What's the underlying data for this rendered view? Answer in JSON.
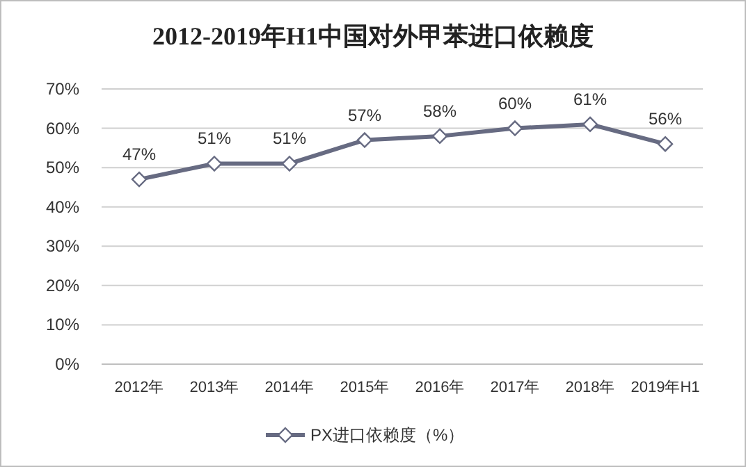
{
  "chart_data": {
    "type": "line",
    "title": "2012-2019年H1中国对外甲苯进口依赖度",
    "categories": [
      "2012年",
      "2013年",
      "2014年",
      "2015年",
      "2016年",
      "2017年",
      "2018年",
      "2019年H1"
    ],
    "series": [
      {
        "name": "PX进口依赖度（%）",
        "color": "#676b82",
        "values": [
          47,
          51,
          51,
          57,
          58,
          60,
          61,
          56
        ],
        "value_labels": [
          "47%",
          "51%",
          "51%",
          "57%",
          "58%",
          "60%",
          "61%",
          "56%"
        ]
      }
    ],
    "ylim": [
      0,
      70
    ],
    "yticks": [
      {
        "value": 0,
        "label": "0%"
      },
      {
        "value": 10,
        "label": "10%"
      },
      {
        "value": 20,
        "label": "20%"
      },
      {
        "value": 30,
        "label": "30%"
      },
      {
        "value": 40,
        "label": "40%"
      },
      {
        "value": 50,
        "label": "50%"
      },
      {
        "value": 60,
        "label": "60%"
      },
      {
        "value": 70,
        "label": "70%"
      }
    ],
    "grid": "y",
    "legend": "bottom",
    "marker": "diamond",
    "line_style": "solid"
  }
}
